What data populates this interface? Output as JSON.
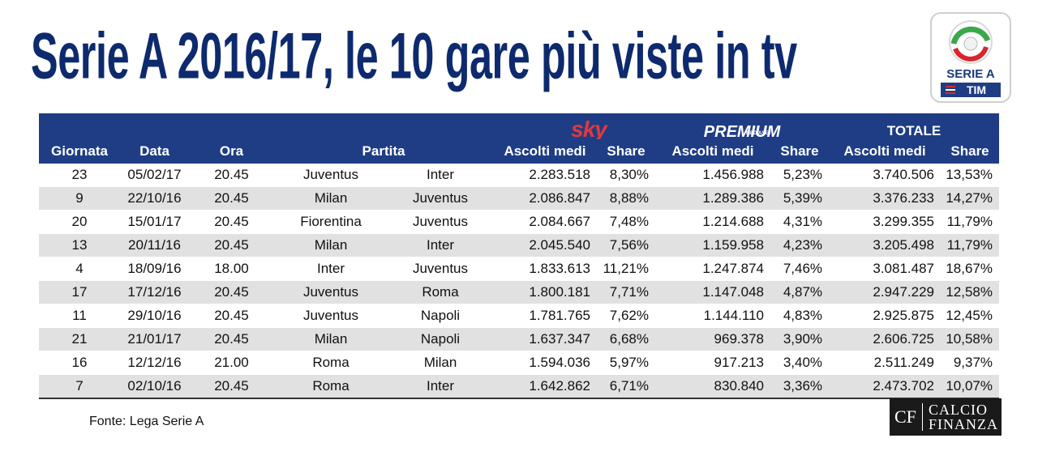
{
  "title": "Serie A 2016/17, le 10 gare più viste in tv",
  "logo": {
    "line1": "SERIE A",
    "line2": "TIM"
  },
  "broadcasters": {
    "sky": "sky",
    "premium": "PREMIUM",
    "premium_sub": "MEDIASET",
    "total": "TOTALE"
  },
  "columns": {
    "giornata": "Giornata",
    "data": "Data",
    "ora": "Ora",
    "partita": "Partita",
    "sky_ascolti": "Ascolti medi",
    "sky_share": "Share",
    "premium_ascolti": "Ascolti medi",
    "premium_share": "Share",
    "totale_ascolti": "Ascolti medi",
    "totale_share": "Share"
  },
  "rows": [
    {
      "giornata": "23",
      "data": "05/02/17",
      "ora": "20.45",
      "home": "Juventus",
      "away": "Inter",
      "sky_ascolti": "2.283.518",
      "sky_share": "8,30%",
      "premium_ascolti": "1.456.988",
      "premium_share": "5,23%",
      "totale_ascolti": "3.740.506",
      "totale_share": "13,53%"
    },
    {
      "giornata": "9",
      "data": "22/10/16",
      "ora": "20.45",
      "home": "Milan",
      "away": "Juventus",
      "sky_ascolti": "2.086.847",
      "sky_share": "8,88%",
      "premium_ascolti": "1.289.386",
      "premium_share": "5,39%",
      "totale_ascolti": "3.376.233",
      "totale_share": "14,27%"
    },
    {
      "giornata": "20",
      "data": "15/01/17",
      "ora": "20.45",
      "home": "Fiorentina",
      "away": "Juventus",
      "sky_ascolti": "2.084.667",
      "sky_share": "7,48%",
      "premium_ascolti": "1.214.688",
      "premium_share": "4,31%",
      "totale_ascolti": "3.299.355",
      "totale_share": "11,79%"
    },
    {
      "giornata": "13",
      "data": "20/11/16",
      "ora": "20.45",
      "home": "Milan",
      "away": "Inter",
      "sky_ascolti": "2.045.540",
      "sky_share": "7,56%",
      "premium_ascolti": "1.159.958",
      "premium_share": "4,23%",
      "totale_ascolti": "3.205.498",
      "totale_share": "11,79%"
    },
    {
      "giornata": "4",
      "data": "18/09/16",
      "ora": "18.00",
      "home": "Inter",
      "away": "Juventus",
      "sky_ascolti": "1.833.613",
      "sky_share": "11,21%",
      "premium_ascolti": "1.247.874",
      "premium_share": "7,46%",
      "totale_ascolti": "3.081.487",
      "totale_share": "18,67%"
    },
    {
      "giornata": "17",
      "data": "17/12/16",
      "ora": "20.45",
      "home": "Juventus",
      "away": "Roma",
      "sky_ascolti": "1.800.181",
      "sky_share": "7,71%",
      "premium_ascolti": "1.147.048",
      "premium_share": "4,87%",
      "totale_ascolti": "2.947.229",
      "totale_share": "12,58%"
    },
    {
      "giornata": "11",
      "data": "29/10/16",
      "ora": "20.45",
      "home": "Juventus",
      "away": "Napoli",
      "sky_ascolti": "1.781.765",
      "sky_share": "7,62%",
      "premium_ascolti": "1.144.110",
      "premium_share": "4,83%",
      "totale_ascolti": "2.925.875",
      "totale_share": "12,45%"
    },
    {
      "giornata": "21",
      "data": "21/01/17",
      "ora": "20.45",
      "home": "Milan",
      "away": "Napoli",
      "sky_ascolti": "1.637.347",
      "sky_share": "6,68%",
      "premium_ascolti": "969.378",
      "premium_share": "3,90%",
      "totale_ascolti": "2.606.725",
      "totale_share": "10,58%"
    },
    {
      "giornata": "16",
      "data": "12/12/16",
      "ora": "21.00",
      "home": "Roma",
      "away": "Milan",
      "sky_ascolti": "1.594.036",
      "sky_share": "5,97%",
      "premium_ascolti": "917.213",
      "premium_share": "3,40%",
      "totale_ascolti": "2.511.249",
      "totale_share": "9,37%"
    },
    {
      "giornata": "7",
      "data": "02/10/16",
      "ora": "20.45",
      "home": "Roma",
      "away": "Inter",
      "sky_ascolti": "1.642.862",
      "sky_share": "6,71%",
      "premium_ascolti": "830.840",
      "premium_share": "3,36%",
      "totale_ascolti": "2.473.702",
      "totale_share": "10,07%"
    }
  ],
  "source": "Fonte: Lega Serie A",
  "brand": {
    "short": "CF",
    "line1": "CALCIO",
    "line2": "FINANZA"
  },
  "colors": {
    "title": "#0e2a6e",
    "header_bg": "#1f3d85",
    "stripe": "#e1e1e1",
    "sky": "#e23a3a"
  }
}
